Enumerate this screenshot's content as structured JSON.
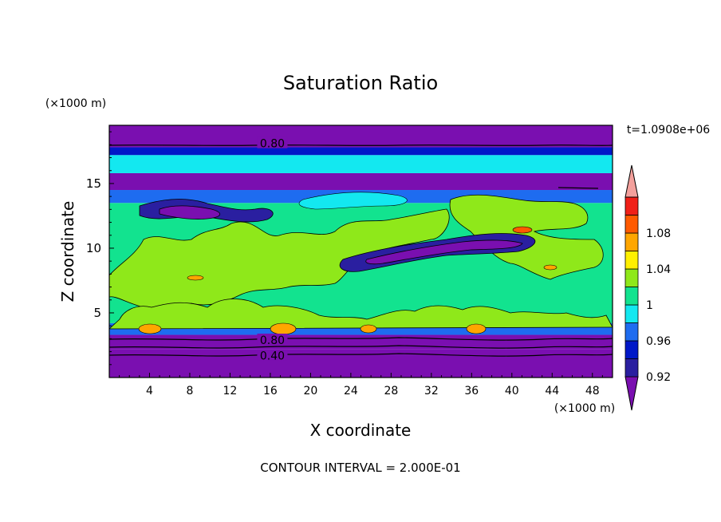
{
  "chart_data": {
    "type": "heatmap",
    "title": "Saturation Ratio",
    "xlabel": "X coordinate",
    "ylabel": "Z coordinate",
    "x_unit": "(×1000 m)",
    "y_unit": "(×1000 m)",
    "time_label": "t=1.0908e+06",
    "footer": "CONTOUR INTERVAL = 2.000E-01",
    "xlim": [
      0,
      50
    ],
    "ylim": [
      0,
      19.5
    ],
    "x_ticks": [
      4,
      8,
      12,
      16,
      20,
      24,
      28,
      32,
      36,
      40,
      44,
      48
    ],
    "y_ticks": [
      5,
      10,
      15
    ],
    "contour_labels": [
      {
        "text": "0.80",
        "x": 16.2,
        "y": 18.1
      },
      {
        "text": "0.80",
        "x": 16.2,
        "y": 2.9
      },
      {
        "text": "0.40",
        "x": 16.2,
        "y": 1.7
      }
    ],
    "colorbar": {
      "levels": [
        0.92,
        0.94,
        0.96,
        0.98,
        1.0,
        1.02,
        1.04,
        1.06,
        1.08,
        1.1
      ],
      "colors": [
        "#7a0fb0",
        "#2a1fa0",
        "#0018c8",
        "#1e6cf0",
        "#13e8f0",
        "#12e38f",
        "#8fe81a",
        "#fff000",
        "#ffa600",
        "#ff5a00",
        "#f02018",
        "#f3a09c"
      ],
      "tick_labels": [
        "0.92",
        "0.96",
        "1",
        "1.04",
        "1.08"
      ],
      "tick_values": [
        0.92,
        0.96,
        1.0,
        1.04,
        1.08
      ]
    },
    "color_bands": [
      {
        "z": [
          0,
          2.2
        ],
        "color": "#7a0fb0"
      },
      {
        "z": [
          2.2,
          3.3
        ],
        "color": "#7a0fb0"
      },
      {
        "z": [
          3.3,
          4.2
        ],
        "color": "#1e6cf0"
      },
      {
        "z": [
          4.2,
          13.5
        ],
        "color": "#12e38f"
      },
      {
        "z": [
          13.5,
          14.5
        ],
        "color": "#1e6cf0"
      },
      {
        "z": [
          14.5,
          15.8
        ],
        "color": "#7a0fb0"
      },
      {
        "z": [
          15.8,
          17.2
        ],
        "color": "#13e8f0"
      },
      {
        "z": [
          17.2,
          17.8
        ],
        "color": "#0018c8"
      },
      {
        "z": [
          17.8,
          19.5
        ],
        "color": "#7a0fb0"
      }
    ]
  }
}
